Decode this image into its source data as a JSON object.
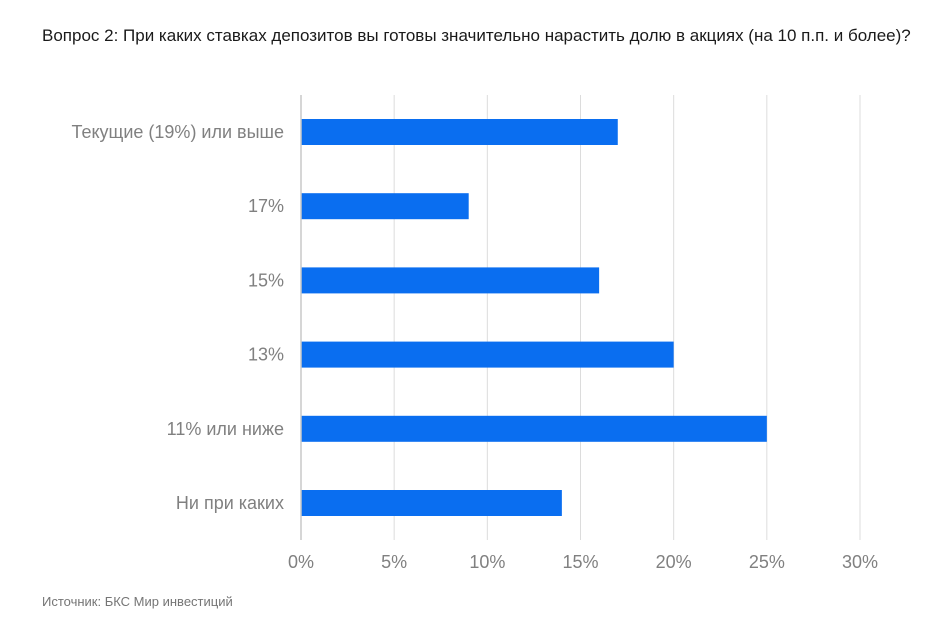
{
  "title": "Вопрос 2: При каких ставках депозитов вы готовы значительно нарастить долю в акциях (на 10 п.п. и более)?",
  "source": "Источник: БКС Мир инвестиций",
  "colors": {
    "bar": "#0a6ef0",
    "grid": "#dcdcdc",
    "axis": "#c8c8c8",
    "label": "#808080"
  },
  "chart_data": {
    "type": "bar",
    "orientation": "horizontal",
    "categories": [
      "Текущие (19%) или выше",
      "17%",
      "15%",
      "13%",
      "11% или ниже",
      "Ни при каких"
    ],
    "values": [
      17,
      9,
      16,
      20,
      25,
      14
    ],
    "unit": "%",
    "xlim": [
      0,
      30
    ],
    "xticks": [
      0,
      5,
      10,
      15,
      20,
      25,
      30
    ],
    "xtick_labels": [
      "0%",
      "5%",
      "10%",
      "15%",
      "20%",
      "25%",
      "30%"
    ],
    "grid": true,
    "legend": "none"
  }
}
